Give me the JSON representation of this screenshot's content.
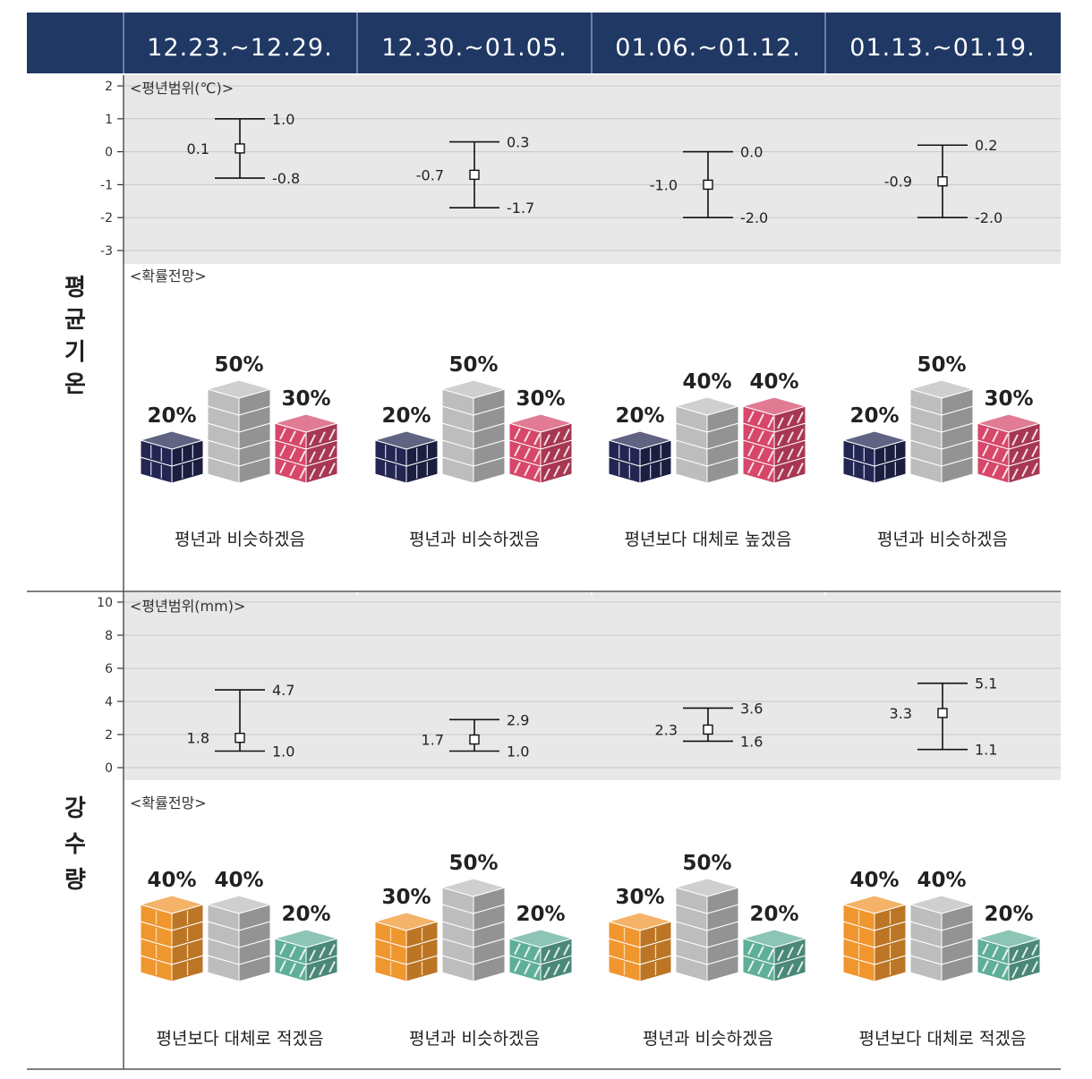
{
  "header": {
    "periods": [
      "12.23.~12.29.",
      "12.30.~01.05.",
      "01.06.~01.12.",
      "01.13.~01.19."
    ]
  },
  "colors": {
    "header_bg": "#1f3864",
    "plot_bg": "#e8e8e8",
    "below": "#232651",
    "normal": "#bdbdbd",
    "above_temp": "#d6476a",
    "below_precip": "#f0962f",
    "above_precip": "#5fae98"
  },
  "temperature": {
    "section_label": "평균기온",
    "range_label": "<평년범위(℃)>",
    "prob_label": "<확률전망>",
    "outlooks": [
      "평년과 비슷하겠음",
      "평년과 비슷하겠음",
      "평년보다 대체로 높겠음",
      "평년과 비슷하겠음"
    ]
  },
  "precipitation": {
    "section_label": "강수량",
    "range_label": "<평년범위(mm)>",
    "prob_label": "<확률전망>",
    "outlooks": [
      "평년보다 대체로 적겠음",
      "평년과 비슷하겠음",
      "평년과 비슷하겠음",
      "평년보다 대체로 적겠음"
    ]
  },
  "chart_data": [
    {
      "type": "errorbar",
      "categories": [
        "12.23.~12.29.",
        "12.30.~01.05.",
        "01.06.~01.12.",
        "01.13.~01.19."
      ],
      "series": [
        {
          "name": "평년범위(℃)",
          "center": [
            0.1,
            -0.7,
            -1.0,
            -0.9
          ],
          "upper": [
            1.0,
            0.3,
            0.0,
            0.2
          ],
          "lower": [
            -0.8,
            -1.7,
            -2.0,
            -2.0
          ]
        }
      ],
      "center_labels": [
        "0.1",
        "-0.7",
        "-1.0",
        "-0.9"
      ],
      "upper_labels": [
        "1.0",
        "0.3",
        "0.0",
        "0.2"
      ],
      "lower_labels": [
        "-0.8",
        "-1.7",
        "-2.0",
        "-2.0"
      ],
      "ylim": [
        -3,
        2
      ],
      "yticks": [
        2,
        1,
        0,
        -1,
        -2,
        -3
      ],
      "grid": true
    },
    {
      "type": "bar",
      "title": "",
      "categories": [
        "12.23.~12.29.",
        "12.30.~01.05.",
        "01.06.~01.12.",
        "01.13.~01.19."
      ],
      "series": [
        {
          "key": "below",
          "values": [
            20,
            20,
            20,
            20
          ]
        },
        {
          "key": "normal",
          "values": [
            50,
            50,
            40,
            50
          ]
        },
        {
          "key": "above",
          "values": [
            30,
            30,
            40,
            30
          ]
        }
      ]
    },
    {
      "type": "errorbar",
      "categories": [
        "12.23.~12.29.",
        "12.30.~01.05.",
        "01.06.~01.12.",
        "01.13.~01.19."
      ],
      "series": [
        {
          "name": "평년범위(mm)",
          "center": [
            1.8,
            1.7,
            2.3,
            3.3
          ],
          "upper": [
            4.7,
            2.9,
            3.6,
            5.1
          ],
          "lower": [
            1.0,
            1.0,
            1.6,
            1.1
          ]
        }
      ],
      "center_labels": [
        "1.8",
        "1.7",
        "2.3",
        "3.3"
      ],
      "upper_labels": [
        "4.7",
        "2.9",
        "3.6",
        "5.1"
      ],
      "lower_labels": [
        "1.0",
        "1.0",
        "1.6",
        "1.1"
      ],
      "ylim": [
        0,
        10
      ],
      "yticks": [
        10,
        8,
        6,
        4,
        2,
        0
      ],
      "grid": true
    },
    {
      "type": "bar",
      "title": "",
      "categories": [
        "12.23.~12.29.",
        "12.30.~01.05.",
        "01.06.~01.12.",
        "01.13.~01.19."
      ],
      "series": [
        {
          "key": "below",
          "values": [
            40,
            30,
            30,
            40
          ]
        },
        {
          "key": "normal",
          "values": [
            40,
            50,
            50,
            40
          ]
        },
        {
          "key": "above",
          "values": [
            20,
            20,
            20,
            20
          ]
        }
      ]
    }
  ]
}
